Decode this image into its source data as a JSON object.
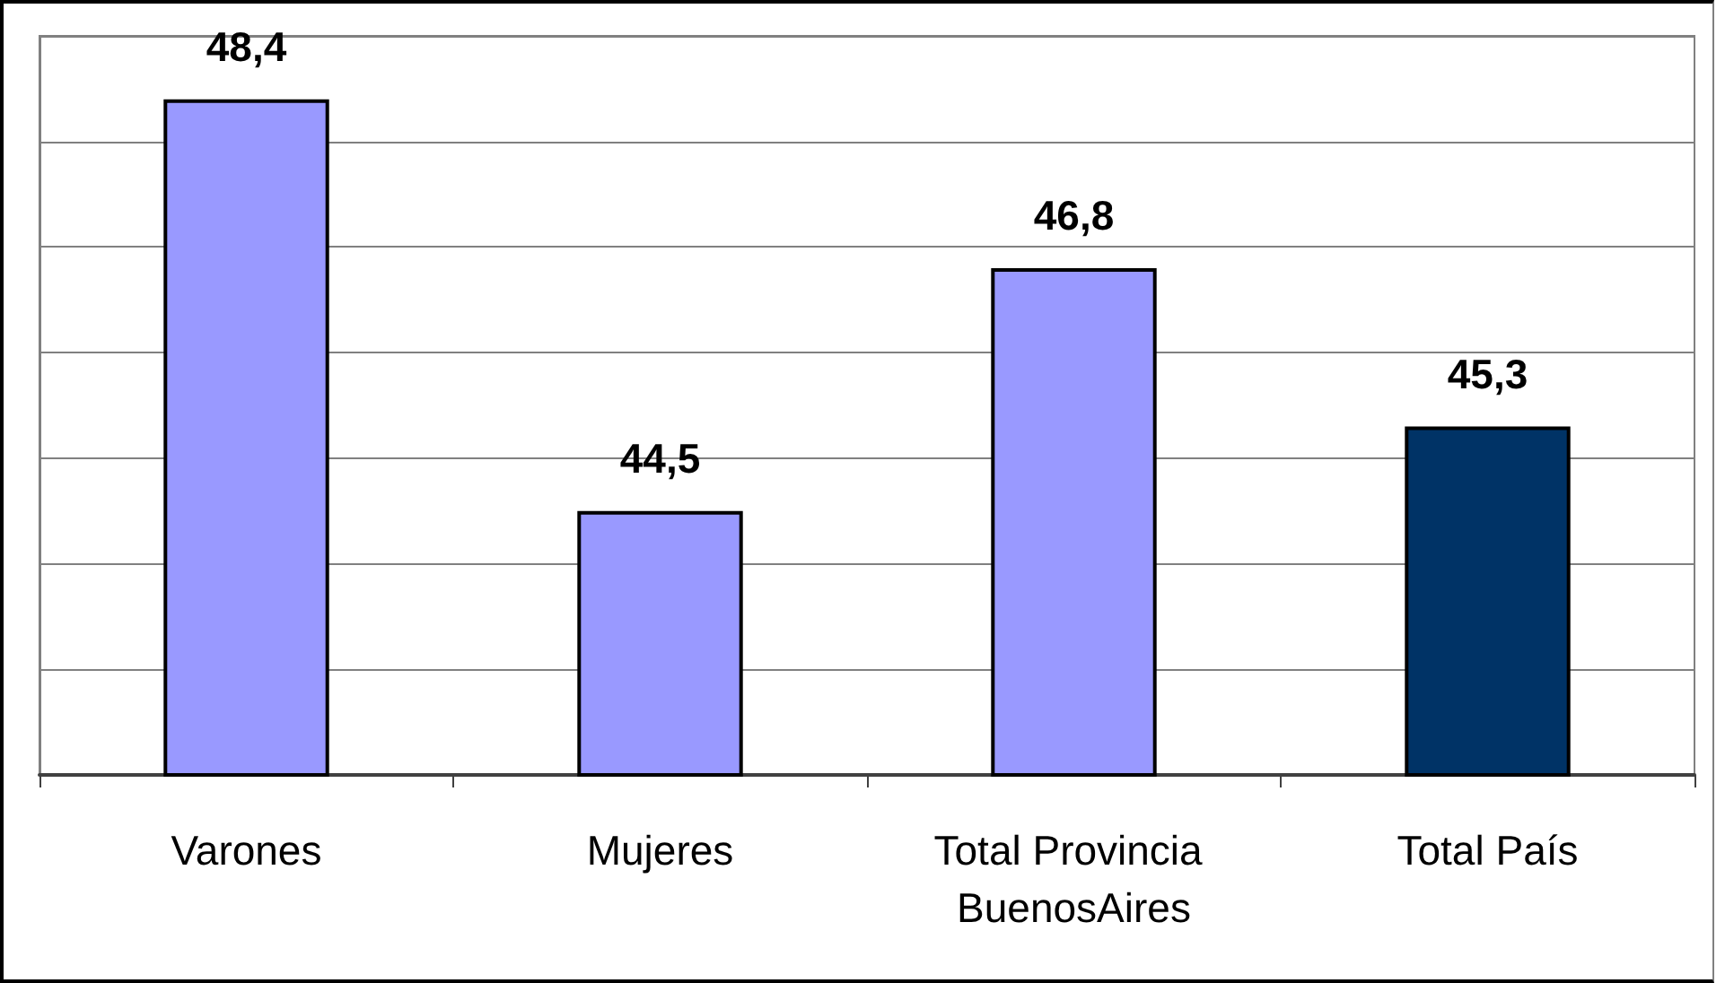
{
  "chart_data": {
    "type": "bar",
    "categories": [
      "Varones",
      "Mujeres",
      "Total Provincia BuenosAires",
      "Total País"
    ],
    "values": [
      48.4,
      44.5,
      46.8,
      45.3
    ],
    "colors": [
      "#9999ff",
      "#9999ff",
      "#9999ff",
      "#003366"
    ],
    "value_labels": [
      "48,4",
      "44,5",
      "46,8",
      "45,3"
    ],
    "ylim": [
      42,
      49
    ],
    "yticks": [
      {
        "value": 42,
        "label": null
      },
      {
        "value": 43,
        "label": null
      },
      {
        "value": 44,
        "label": null
      },
      {
        "value": 45,
        "label": null
      },
      {
        "value": 46,
        "label": null
      },
      {
        "value": 47,
        "label": null
      },
      {
        "value": 48,
        "label": null
      },
      {
        "value": 49,
        "label": null
      }
    ],
    "grid": "y",
    "tick_labels": "x"
  }
}
